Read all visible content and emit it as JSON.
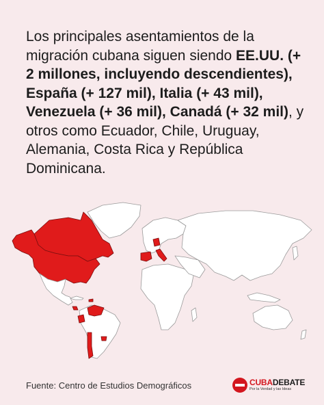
{
  "intro": {
    "t1": "Los principales asentamientos de la migración cubana siguen siendo ",
    "b1": "EE.UU. (+ 2 millones, incluyendo descendientes), España (+ 127 mil), Italia (+ 43 mil), Venezuela (+ 36 mil), Canadá (+ 32 mil)",
    "t2": ", y otros como Ecuador, Chile, Uruguay, Alemania, Costa Rica y República Dominicana."
  },
  "source": "Fuente: Centro de Estudios Demográficos",
  "logo": {
    "name_part1": "CUBA",
    "name_part2": "DEBATE",
    "tagline": "Por la Verdad y las Ideas"
  },
  "colors": {
    "background": "#f8eaec",
    "highlight": "#e01b1b",
    "land": "#ffffff",
    "brand": "#d3161e"
  }
}
